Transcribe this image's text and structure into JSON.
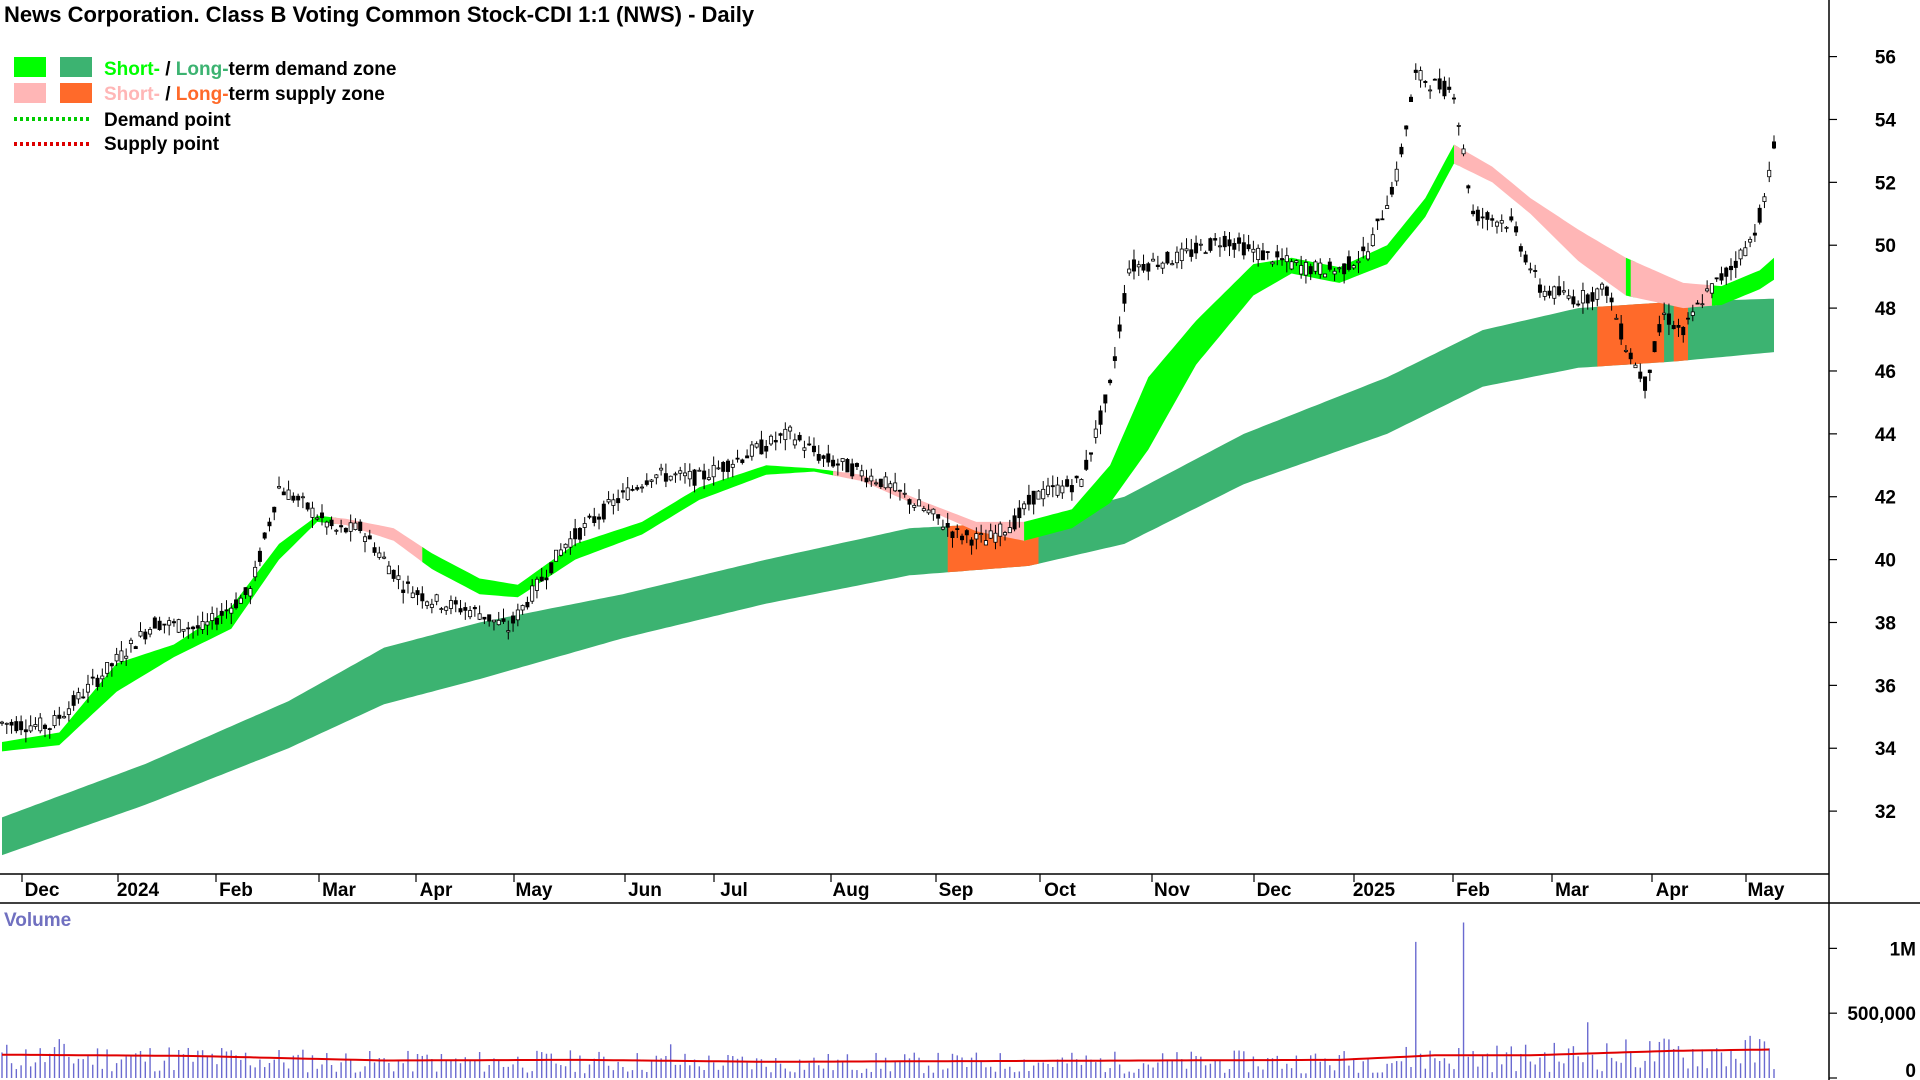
{
  "title": "News Corporation. Class B Voting Common Stock-CDI 1:1 (NWS) - Daily",
  "legend": {
    "demand_zone": {
      "short": "Short-",
      "sep": " / ",
      "long": "Long-",
      "rest": "term demand zone"
    },
    "supply_zone": {
      "short": "Short-",
      "sep": " / ",
      "long": "Long-",
      "rest": "term supply zone"
    },
    "demand_point": "Demand point",
    "supply_point": "Supply point"
  },
  "colors": {
    "short_demand": "#00ff00",
    "long_demand": "#3cb371",
    "short_supply": "#ffb6b6",
    "long_supply": "#ff6a2a",
    "demand_point": "#00cc00",
    "supply_point": "#dd0000",
    "volume_bar": "#6a6ad0",
    "volume_avg": "#e00000",
    "candle": "#000000"
  },
  "chart_data": {
    "type": "candlestick",
    "title": "News Corporation. Class B Voting Common Stock-CDI 1:1 (NWS) - Daily",
    "x_ticks": [
      "Dec",
      "2024",
      "Feb",
      "Mar",
      "Apr",
      "May",
      "Jun",
      "Jul",
      "Aug",
      "Sep",
      "Oct",
      "Nov",
      "Dec",
      "2025",
      "Feb",
      "Mar",
      "Apr",
      "May"
    ],
    "y_ticks": [
      32,
      34,
      36,
      38,
      40,
      42,
      44,
      46,
      48,
      50,
      52,
      54,
      56
    ],
    "ylim": [
      30,
      57.8
    ],
    "volume_label": "Volume",
    "volume_ticks": [
      "1M",
      "500,000",
      "0"
    ],
    "volume_tick_values": [
      1000000,
      500000,
      0
    ],
    "volume_ylim": [
      0,
      1350000
    ],
    "price_path": [
      [
        0,
        34.8
      ],
      [
        10,
        34.7
      ],
      [
        22,
        36.5
      ],
      [
        32,
        38.0
      ],
      [
        42,
        37.8
      ],
      [
        52,
        39.0
      ],
      [
        58,
        42.3
      ],
      [
        62,
        41.9
      ],
      [
        70,
        40.9
      ],
      [
        75,
        41.0
      ],
      [
        84,
        39.2
      ],
      [
        90,
        38.7
      ],
      [
        100,
        38.3
      ],
      [
        106,
        37.8
      ],
      [
        110,
        38.7
      ],
      [
        118,
        40.5
      ],
      [
        128,
        41.8
      ],
      [
        136,
        42.7
      ],
      [
        146,
        42.6
      ],
      [
        158,
        43.5
      ],
      [
        165,
        44.0
      ],
      [
        172,
        43.2
      ],
      [
        178,
        42.9
      ],
      [
        184,
        42.5
      ],
      [
        194,
        41.5
      ],
      [
        200,
        40.8
      ],
      [
        206,
        40.6
      ],
      [
        212,
        41.2
      ],
      [
        216,
        42.0
      ],
      [
        226,
        42.5
      ],
      [
        232,
        45.5
      ],
      [
        236,
        49.3
      ],
      [
        246,
        49.6
      ],
      [
        256,
        50.2
      ],
      [
        262,
        49.8
      ],
      [
        272,
        49.3
      ],
      [
        280,
        49.2
      ],
      [
        286,
        49.8
      ],
      [
        292,
        52.2
      ],
      [
        296,
        55.4
      ],
      [
        300,
        55.1
      ],
      [
        304,
        54.9
      ],
      [
        308,
        51.0
      ],
      [
        316,
        50.7
      ],
      [
        322,
        48.6
      ],
      [
        330,
        48.3
      ],
      [
        336,
        48.6
      ],
      [
        340,
        46.8
      ],
      [
        344,
        45.6
      ],
      [
        348,
        47.8
      ],
      [
        352,
        47.2
      ],
      [
        356,
        48.3
      ],
      [
        362,
        49.3
      ],
      [
        366,
        50.1
      ],
      [
        369,
        51.4
      ],
      [
        371,
        53.1
      ]
    ],
    "short_term_upper": [
      [
        0,
        34.2
      ],
      [
        12,
        34.5
      ],
      [
        24,
        36.7
      ],
      [
        36,
        37.3
      ],
      [
        48,
        38.5
      ],
      [
        58,
        40.5
      ],
      [
        66,
        41.4
      ],
      [
        72,
        41.3
      ],
      [
        82,
        41.0
      ],
      [
        90,
        40.2
      ],
      [
        100,
        39.4
      ],
      [
        108,
        39.2
      ],
      [
        120,
        40.5
      ],
      [
        134,
        41.2
      ],
      [
        146,
        42.3
      ],
      [
        160,
        43.0
      ],
      [
        170,
        42.9
      ],
      [
        180,
        42.7
      ],
      [
        192,
        41.9
      ],
      [
        204,
        41.2
      ],
      [
        214,
        41.2
      ],
      [
        224,
        41.6
      ],
      [
        232,
        43.0
      ],
      [
        240,
        45.8
      ],
      [
        250,
        47.6
      ],
      [
        262,
        49.4
      ],
      [
        270,
        49.6
      ],
      [
        280,
        49.3
      ],
      [
        290,
        50.0
      ],
      [
        298,
        51.5
      ],
      [
        304,
        53.2
      ],
      [
        312,
        52.5
      ],
      [
        320,
        51.5
      ],
      [
        330,
        50.5
      ],
      [
        340,
        49.6
      ],
      [
        352,
        48.8
      ],
      [
        360,
        48.7
      ],
      [
        368,
        49.2
      ],
      [
        371,
        49.6
      ]
    ],
    "short_term_lower": [
      [
        0,
        33.9
      ],
      [
        12,
        34.1
      ],
      [
        24,
        35.8
      ],
      [
        36,
        36.9
      ],
      [
        48,
        37.8
      ],
      [
        58,
        40.0
      ],
      [
        66,
        41.2
      ],
      [
        72,
        41.1
      ],
      [
        82,
        40.6
      ],
      [
        90,
        39.7
      ],
      [
        100,
        38.9
      ],
      [
        108,
        38.8
      ],
      [
        120,
        40.0
      ],
      [
        134,
        40.8
      ],
      [
        146,
        41.9
      ],
      [
        160,
        42.7
      ],
      [
        170,
        42.8
      ],
      [
        180,
        42.5
      ],
      [
        192,
        41.7
      ],
      [
        204,
        40.9
      ],
      [
        214,
        40.6
      ],
      [
        224,
        41.0
      ],
      [
        232,
        41.8
      ],
      [
        240,
        43.5
      ],
      [
        250,
        46.2
      ],
      [
        262,
        48.4
      ],
      [
        270,
        49.1
      ],
      [
        280,
        48.8
      ],
      [
        290,
        49.4
      ],
      [
        298,
        50.9
      ],
      [
        304,
        52.6
      ],
      [
        312,
        52.0
      ],
      [
        320,
        51.0
      ],
      [
        330,
        49.5
      ],
      [
        340,
        48.4
      ],
      [
        352,
        48.0
      ],
      [
        360,
        48.1
      ],
      [
        368,
        48.6
      ],
      [
        371,
        48.9
      ]
    ],
    "long_term_upper": [
      [
        0,
        31.8
      ],
      [
        30,
        33.5
      ],
      [
        60,
        35.5
      ],
      [
        80,
        37.2
      ],
      [
        100,
        38.0
      ],
      [
        130,
        38.9
      ],
      [
        160,
        40.0
      ],
      [
        190,
        41.0
      ],
      [
        215,
        41.2
      ],
      [
        235,
        42.0
      ],
      [
        260,
        44.0
      ],
      [
        290,
        45.8
      ],
      [
        310,
        47.3
      ],
      [
        330,
        48.0
      ],
      [
        350,
        48.2
      ],
      [
        371,
        48.3
      ]
    ],
    "long_term_lower": [
      [
        0,
        30.6
      ],
      [
        30,
        32.2
      ],
      [
        60,
        34.0
      ],
      [
        80,
        35.4
      ],
      [
        100,
        36.2
      ],
      [
        130,
        37.5
      ],
      [
        160,
        38.6
      ],
      [
        190,
        39.5
      ],
      [
        215,
        39.8
      ],
      [
        235,
        40.5
      ],
      [
        260,
        42.4
      ],
      [
        290,
        44.0
      ],
      [
        310,
        45.5
      ],
      [
        330,
        46.1
      ],
      [
        350,
        46.3
      ],
      [
        371,
        46.6
      ]
    ],
    "supply_zones_short": [
      [
        70,
        88
      ],
      [
        175,
        214
      ],
      [
        305,
        340
      ],
      [
        342,
        358
      ]
    ],
    "long_supply_zones": [
      [
        198,
        217
      ],
      [
        334,
        348
      ],
      [
        350,
        353
      ]
    ],
    "volume_events": [
      [
        12,
        300000
      ],
      [
        89,
        180000
      ],
      [
        140,
        260000
      ],
      [
        296,
        1050000
      ],
      [
        306,
        1200000
      ],
      [
        332,
        430000
      ]
    ],
    "volume_average": [
      [
        0,
        180000
      ],
      [
        40,
        170000
      ],
      [
        80,
        135000
      ],
      [
        120,
        140000
      ],
      [
        160,
        125000
      ],
      [
        200,
        130000
      ],
      [
        240,
        135000
      ],
      [
        280,
        140000
      ],
      [
        300,
        175000
      ],
      [
        320,
        175000
      ],
      [
        350,
        210000
      ],
      [
        371,
        220000
      ]
    ]
  }
}
